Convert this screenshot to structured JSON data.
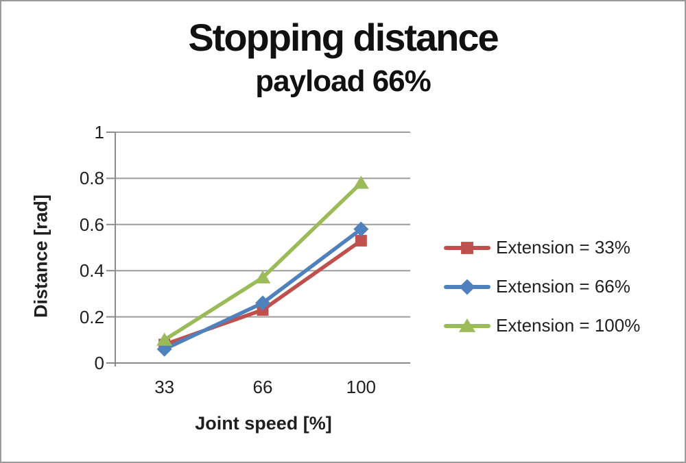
{
  "window": {
    "background": "#ffffff",
    "border_color": "#9a9a9a"
  },
  "chart_data": {
    "type": "line",
    "title": "Stopping distance",
    "subtitle": "payload 66%",
    "xlabel": "Joint speed [%]",
    "ylabel": "Distance [rad]",
    "categories": [
      "33",
      "66",
      "100"
    ],
    "series": [
      {
        "name": "Extension = 33%",
        "marker": "square",
        "color": "#c0504d",
        "values": [
          0.08,
          0.23,
          0.53
        ]
      },
      {
        "name": "Extension = 66%",
        "marker": "diamond",
        "color": "#4f81bd",
        "values": [
          0.06,
          0.26,
          0.58
        ]
      },
      {
        "name": "Extension = 100%",
        "marker": "triangle",
        "color": "#9bbb59",
        "values": [
          0.1,
          0.37,
          0.78
        ]
      }
    ],
    "ylim": [
      0,
      1
    ],
    "y_ticks": [
      0,
      0.2,
      0.4,
      0.6,
      0.8,
      1
    ],
    "y_tick_labels": [
      "0",
      "0.2",
      "0.4",
      "0.6",
      "0.8",
      "1"
    ],
    "grid": true,
    "legend_position": "right",
    "colors": {
      "gridline": "#9c9c9c",
      "axis": "#8a8a8a",
      "text": "#1f1f1f",
      "title": "#111111"
    }
  }
}
